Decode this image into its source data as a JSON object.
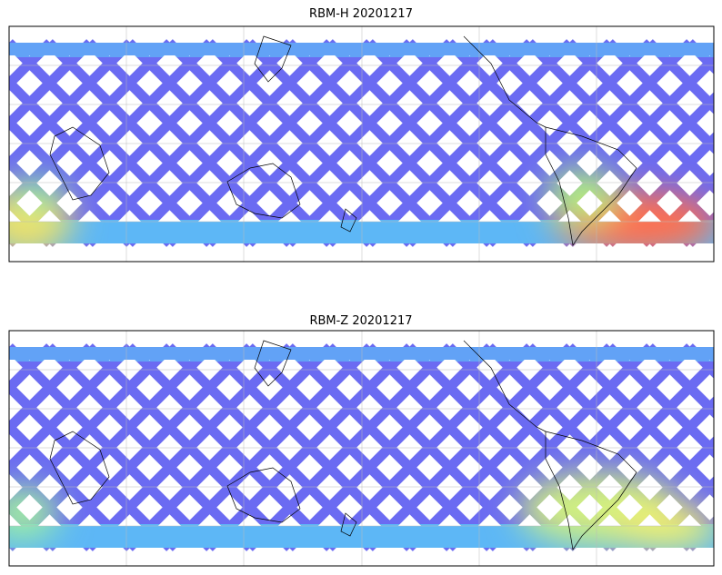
{
  "panels": [
    {
      "title": "RBM-H 20201217"
    },
    {
      "title": "RBM-Z 20201217"
    }
  ]
}
